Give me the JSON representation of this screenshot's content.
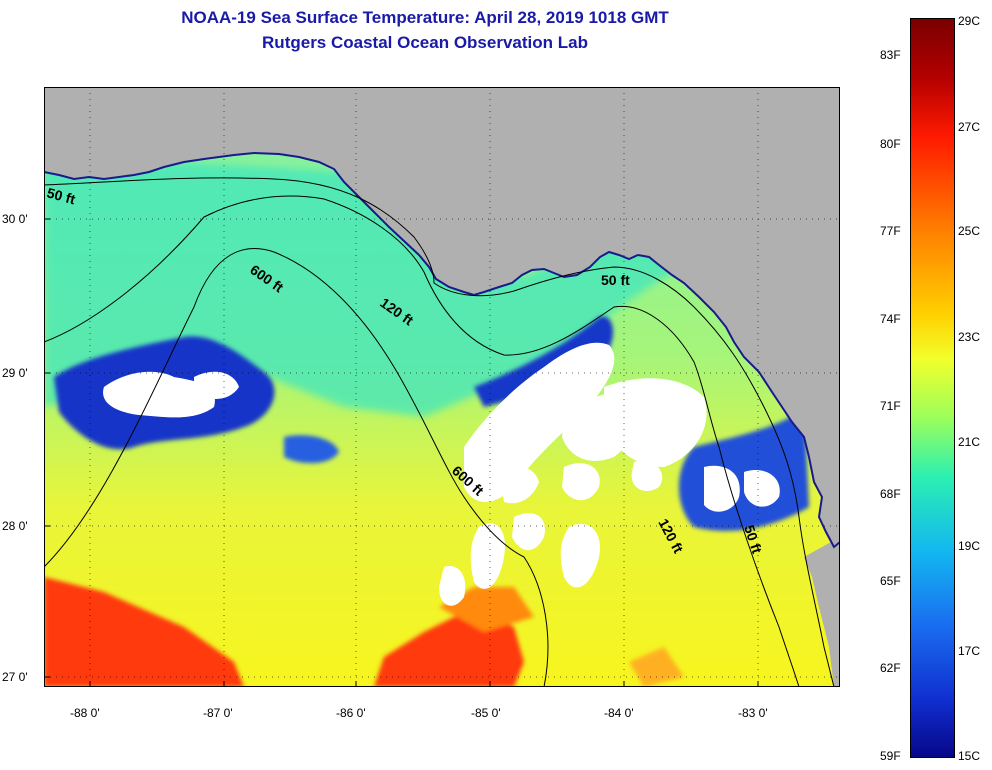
{
  "title": {
    "line1": "NOAA-19 Sea Surface Temperature:  April 28, 2019 1018 GMT",
    "line2": "Rutgers Coastal Ocean Observation Lab"
  },
  "map": {
    "lon_ticks": [
      "-88 0'",
      "-87 0'",
      "-86 0'",
      "-85 0'",
      "-84 0'",
      "-83 0'"
    ],
    "lat_ticks": [
      "30 0'",
      "29 0'",
      "28 0'",
      "27 0'"
    ],
    "contour_labels": [
      "50 ft",
      "600 ft",
      "120 ft",
      "50 ft",
      "600 ft",
      "120 ft",
      "50 ft"
    ],
    "colors": {
      "land": "#b0b0b0",
      "cloud": "#ffffff",
      "warm": "#ff2a00",
      "mid": "#f5f52a",
      "cool": "#60f0a0",
      "cold": "#1030c8"
    }
  },
  "colorbar": {
    "fahrenheit": [
      "83F",
      "80F",
      "77F",
      "74F",
      "71F",
      "68F",
      "65F",
      "62F",
      "59F"
    ],
    "celsius": [
      "29C",
      "27C",
      "25C",
      "23C",
      "21C",
      "19C",
      "17C",
      "15C"
    ]
  }
}
